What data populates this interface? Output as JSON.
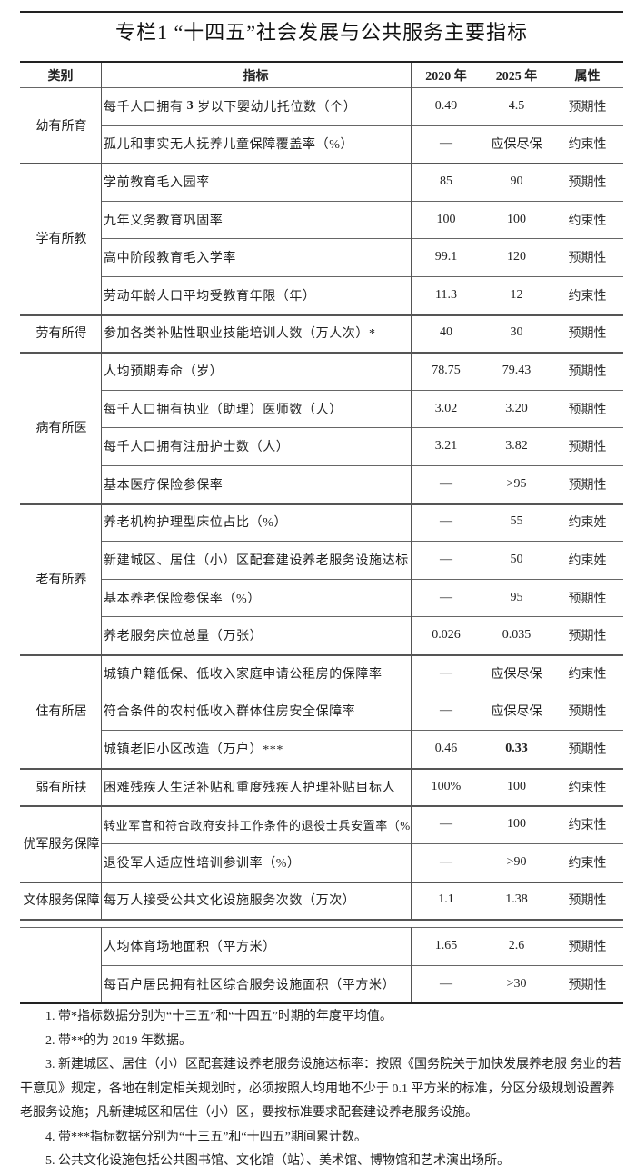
{
  "title": "专栏1 “十四五”社会发展与公共服务主要指标",
  "headers": {
    "category": "类别",
    "indicator": "指标",
    "y2020": "2020 年",
    "y2025": "2025 年",
    "attribute": "属性"
  },
  "groups": [
    {
      "category": "幼有所育",
      "rows": [
        {
          "indicator_pre": "每千人口拥有",
          "indicator_bold": "3",
          "indicator": "岁以下婴幼儿托位数（个）",
          "y2020": "0.49",
          "y2025": "4.5",
          "attribute": "预期性"
        },
        {
          "indicator": "孤儿和事实无人抚养儿童保障覆盖率（%）",
          "y2020": "—",
          "y2025": "应保尽保",
          "attribute": "约束性"
        }
      ]
    },
    {
      "category": "学有所教",
      "rows": [
        {
          "indicator": "学前教育毛入园率",
          "y2020": "85",
          "y2025": "90",
          "attribute": "预期性"
        },
        {
          "indicator": "九年义务教育巩固率",
          "y2020": "100",
          "y2025": "100",
          "attribute": "约束性"
        },
        {
          "indicator": "高中阶段教育毛入学率",
          "y2020": "99.1",
          "y2025": "120",
          "attribute": "预期性"
        },
        {
          "indicator": "劳动年龄人口平均受教育年限（年）",
          "y2020": "11.3",
          "y2025": "12",
          "attribute": "约束性"
        }
      ]
    },
    {
      "category": "劳有所得",
      "rows": [
        {
          "indicator": "参加各类补贴性职业技能培训人数（万人次）*",
          "y2020": "40",
          "y2025": "30",
          "attribute": "预期性"
        }
      ]
    },
    {
      "category": "病有所医",
      "rows": [
        {
          "indicator": "人均预期寿命（岁）",
          "y2020": "78.75",
          "y2025": "79.43",
          "attribute": "预期性"
        },
        {
          "indicator": "每千人口拥有执业（助理）医师数（人）",
          "y2020": "3.02",
          "y2025": "3.20",
          "attribute": "预期性"
        },
        {
          "indicator": "每千人口拥有注册护士数（人）",
          "y2020": "3.21",
          "y2025": "3.82",
          "attribute": "预期性"
        },
        {
          "indicator": "基本医疗保险参保率",
          "y2020": "—",
          "y2025": ">95",
          "attribute": "预期性"
        }
      ]
    },
    {
      "category": "老有所养",
      "rows": [
        {
          "indicator": "养老机构护理型床位占比（%）",
          "y2020": "—",
          "y2025": "55",
          "attribute": "约束姓"
        },
        {
          "indicator": "新建城区、居住（小）区配套建设养老服务设施达标",
          "y2020": "—",
          "y2025": "50",
          "attribute": "约束姓"
        },
        {
          "indicator": "基本养老保险参保率（%）",
          "y2020": "—",
          "y2025": "95",
          "attribute": "预期性"
        },
        {
          "indicator": "养老服务床位总量（万张）",
          "y2020": "0.026",
          "y2025": "0.035",
          "attribute": "预期性"
        }
      ]
    },
    {
      "category": "住有所居",
      "rows": [
        {
          "indicator": "城镇户籍低保、低收入家庭申请公租房的保障率",
          "y2020": "—",
          "y2025": "应保尽保",
          "attribute": "约束性"
        },
        {
          "indicator": "符合条件的农村低收入群体住房安全保障率",
          "y2020": "—",
          "y2025": "应保尽保",
          "attribute": "预期性"
        },
        {
          "indicator": "城镇老旧小区改造（万户）***",
          "y2020": "0.46",
          "y2025": "0.33",
          "y2025_bold": true,
          "attribute": "预期性"
        }
      ]
    },
    {
      "category": "弱有所扶",
      "rows": [
        {
          "indicator": "困难残疾人生活补贴和重度残疾人护理补贴目标人",
          "y2020": "100%",
          "y2025": "100",
          "attribute": "约束性"
        }
      ]
    },
    {
      "category": "优军服务保障",
      "rows": [
        {
          "indicator": "转业军官和符合政府安排工作条件的退役士兵安置率（%）",
          "y2020": "—",
          "y2025": "100",
          "attribute": "约束性",
          "small": true
        },
        {
          "indicator": "退役军人适应性培训参训率（%）",
          "y2020": "—",
          "y2025": ">90",
          "attribute": "约束性"
        }
      ]
    },
    {
      "category": "文体服务保障",
      "rows": [
        {
          "indicator": "每万人接受公共文化设施服务次数（万次）",
          "y2020": "1.1",
          "y2025": "1.38",
          "attribute": "预期性"
        }
      ]
    },
    {
      "category": "",
      "gap": true,
      "rows": [
        {
          "indicator": "人均体育场地面积（平方米）",
          "y2020": "1.65",
          "y2025": "2.6",
          "attribute": "预期性"
        },
        {
          "indicator": "每百户居民拥有社区综合服务设施面积（平方米）",
          "y2020": "—",
          "y2025": ">30",
          "attribute": "预期性"
        }
      ]
    }
  ],
  "notes": [
    "1. 带*指标数据分别为“十三五”和“十四五”时期的年度平均值。",
    "2. 带**的为 2019 年数据。",
    "3. 新建城区、居住（小）区配套建设养老服务设施达标率：按照《国务院关于加快发展养老服 务业的若干意见》规定，各地在制定相关规划时，必须按照人均用地不少于 0.1 平方米的标准，分区分级规划设置养老服务设施；凡新建城区和居住（小）区，要按标准要求配套建设养老服务设施。",
    "4. 带***指标数据分别为“十三五”和“十四五”期间累计数。",
    "5. 公共文化设施包括公共图书馆、文化馆（站）、美术馆、博物馆和艺术演出场所。"
  ]
}
